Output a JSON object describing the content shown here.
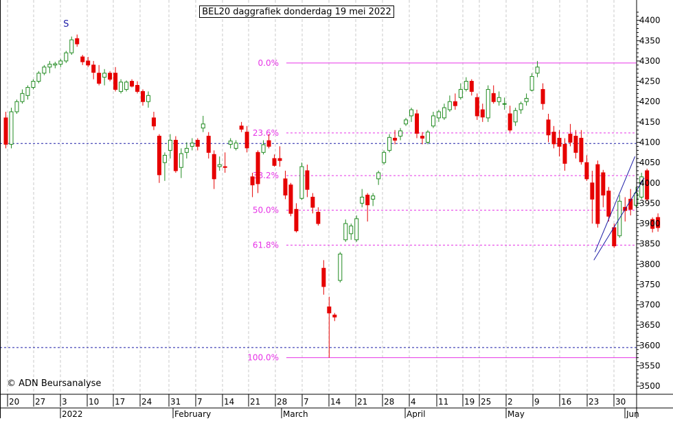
{
  "chart_data": {
    "type": "candlestick",
    "title": "BEL20 daggrafiek donderdag 19 mei 2022",
    "copyright": "© ADN Beursanalyse",
    "y_ticks": [
      4400,
      4350,
      4300,
      4250,
      4200,
      4150,
      4100,
      4050,
      4000,
      3950,
      3900,
      3850,
      3800,
      3750,
      3700,
      3650,
      3600,
      3550,
      3500
    ],
    "ylim": [
      3500,
      4420
    ],
    "day_ticks": [
      "20",
      "27",
      "3",
      "10",
      "17",
      "24",
      "31",
      "7",
      "14",
      "21",
      "28",
      "7",
      "14",
      "21",
      "28",
      "4",
      "11",
      "19",
      "25",
      "2",
      "9",
      "16",
      "23",
      "30"
    ],
    "months": [
      "2022",
      "February",
      "March",
      "April",
      "May",
      "Jun"
    ],
    "fib_levels": [
      {
        "label": "0.0%",
        "value": 4295,
        "style": "solid"
      },
      {
        "label": "23.6%",
        "value": 4123,
        "style": "dashed"
      },
      {
        "label": "38.2%",
        "value": 4018,
        "style": "dashed"
      },
      {
        "label": "50.0%",
        "value": 3933,
        "style": "dashed"
      },
      {
        "label": "61.8%",
        "value": 3847,
        "style": "dashed"
      },
      {
        "label": "100.0%",
        "value": 3570,
        "style": "solid"
      }
    ],
    "blue_levels": [
      4097,
      3595
    ],
    "annotations": [
      {
        "text": "S",
        "color": "#1a1aa6"
      }
    ],
    "candles": [
      [
        4160,
        4175,
        4085,
        4095
      ],
      [
        4095,
        4185,
        4085,
        4175
      ],
      [
        4175,
        4205,
        4170,
        4200
      ],
      [
        4200,
        4230,
        4195,
        4220
      ],
      [
        4215,
        4240,
        4205,
        4235
      ],
      [
        4235,
        4255,
        4230,
        4250
      ],
      [
        4250,
        4275,
        4245,
        4270
      ],
      [
        4270,
        4290,
        4265,
        4285
      ],
      [
        4285,
        4300,
        4270,
        4292
      ],
      [
        4290,
        4298,
        4282,
        4293
      ],
      [
        4292,
        4305,
        4285,
        4300
      ],
      [
        4300,
        4325,
        4295,
        4320
      ],
      [
        4320,
        4360,
        4315,
        4352
      ],
      [
        4355,
        4365,
        4335,
        4342
      ],
      [
        4310,
        4315,
        4290,
        4298
      ],
      [
        4300,
        4310,
        4285,
        4290
      ],
      [
        4290,
        4300,
        4255,
        4272
      ],
      [
        4270,
        4290,
        4240,
        4245
      ],
      [
        4260,
        4280,
        4240,
        4270
      ],
      [
        4270,
        4275,
        4250,
        4255
      ],
      [
        4270,
        4285,
        4225,
        4230
      ],
      [
        4225,
        4255,
        4220,
        4248
      ],
      [
        4230,
        4252,
        4225,
        4248
      ],
      [
        4250,
        4255,
        4235,
        4238
      ],
      [
        4240,
        4250,
        4220,
        4225
      ],
      [
        4225,
        4230,
        4190,
        4200
      ],
      [
        4200,
        4225,
        4185,
        4215
      ],
      [
        4160,
        4175,
        4130,
        4140
      ],
      [
        4115,
        4120,
        4000,
        4020
      ],
      [
        4050,
        4075,
        4005,
        4068
      ],
      [
        4080,
        4120,
        4060,
        4105
      ],
      [
        4105,
        4115,
        4025,
        4030
      ],
      [
        4038,
        4085,
        4012,
        4072
      ],
      [
        4075,
        4100,
        4060,
        4085
      ],
      [
        4090,
        4110,
        4080,
        4098
      ],
      [
        4105,
        4110,
        4080,
        4090
      ],
      [
        4135,
        4165,
        4125,
        4145
      ],
      [
        4115,
        4125,
        4060,
        4075
      ],
      [
        4070,
        4080,
        3985,
        4010
      ],
      [
        4040,
        4065,
        4030,
        4045
      ],
      [
        4040,
        4075,
        4025,
        4038
      ],
      [
        4095,
        4110,
        4085,
        4103
      ],
      [
        4085,
        4105,
        4080,
        4098
      ],
      [
        4140,
        4150,
        4125,
        4132
      ],
      [
        4125,
        4140,
        4075,
        4086
      ],
      [
        4015,
        4025,
        3965,
        3995
      ],
      [
        4075,
        4080,
        3975,
        3998
      ],
      [
        4075,
        4105,
        4070,
        4094
      ],
      [
        4104,
        4120,
        4085,
        4090
      ],
      [
        4060,
        4070,
        4040,
        4043
      ],
      [
        4060,
        4090,
        4040,
        4055
      ],
      [
        4010,
        4030,
        3960,
        3970
      ],
      [
        3995,
        4000,
        3918,
        3925
      ],
      [
        3935,
        3950,
        3878,
        3882
      ],
      [
        3962,
        4050,
        3958,
        4040
      ],
      [
        4030,
        4045,
        3965,
        3984
      ],
      [
        3965,
        3975,
        3925,
        3940
      ],
      [
        3928,
        3940,
        3895,
        3900
      ],
      [
        3790,
        3810,
        3725,
        3745
      ],
      [
        3695,
        3720,
        3570,
        3680
      ],
      [
        3675,
        3680,
        3660,
        3670
      ],
      [
        3760,
        3830,
        3755,
        3825
      ],
      [
        3860,
        3910,
        3855,
        3900
      ],
      [
        3875,
        3900,
        3860,
        3894
      ],
      [
        3860,
        3920,
        3855,
        3912
      ],
      [
        3950,
        3985,
        3940,
        3965
      ],
      [
        3970,
        3975,
        3905,
        3946
      ],
      [
        3960,
        3975,
        3943,
        3968
      ],
      [
        4010,
        4030,
        3995,
        4025
      ],
      [
        4050,
        4080,
        4045,
        4075
      ],
      [
        4080,
        4120,
        4075,
        4112
      ],
      [
        4110,
        4130,
        4095,
        4105
      ],
      [
        4115,
        4135,
        4105,
        4128
      ],
      [
        4145,
        4160,
        4140,
        4155
      ],
      [
        4165,
        4185,
        4150,
        4180
      ],
      [
        4170,
        4180,
        4110,
        4122
      ],
      [
        4115,
        4125,
        4095,
        4110
      ],
      [
        4100,
        4130,
        4095,
        4125
      ],
      [
        4140,
        4175,
        4135,
        4165
      ],
      [
        4160,
        4180,
        4150,
        4175
      ],
      [
        4160,
        4195,
        4155,
        4185
      ],
      [
        4180,
        4215,
        4175,
        4200
      ],
      [
        4200,
        4220,
        4180,
        4190
      ],
      [
        4210,
        4245,
        4205,
        4230
      ],
      [
        4230,
        4260,
        4225,
        4250
      ],
      [
        4250,
        4255,
        4215,
        4225
      ],
      [
        4210,
        4220,
        4155,
        4165
      ],
      [
        4180,
        4195,
        4150,
        4162
      ],
      [
        4160,
        4240,
        4150,
        4230
      ],
      [
        4220,
        4240,
        4195,
        4200
      ],
      [
        4200,
        4225,
        4190,
        4210
      ],
      [
        4195,
        4210,
        4180,
        4195
      ],
      [
        4170,
        4190,
        4125,
        4130
      ],
      [
        4150,
        4185,
        4140,
        4178
      ],
      [
        4180,
        4200,
        4170,
        4195
      ],
      [
        4200,
        4220,
        4190,
        4208
      ],
      [
        4228,
        4270,
        4225,
        4262
      ],
      [
        4270,
        4300,
        4260,
        4285
      ],
      [
        4230,
        4245,
        4180,
        4195
      ],
      [
        4155,
        4170,
        4100,
        4118
      ],
      [
        4125,
        4140,
        4085,
        4096
      ],
      [
        4110,
        4130,
        4065,
        4090
      ],
      [
        4095,
        4110,
        4030,
        4048
      ],
      [
        4120,
        4145,
        4090,
        4100
      ],
      [
        4115,
        4130,
        4060,
        4075
      ],
      [
        4110,
        4130,
        4045,
        4052
      ],
      [
        4050,
        4068,
        4005,
        4010
      ],
      [
        4000,
        4030,
        3900,
        3960
      ],
      [
        4045,
        4055,
        3890,
        3900
      ],
      [
        4025,
        4032,
        3940,
        3970
      ],
      [
        3980,
        3990,
        3905,
        3918
      ],
      [
        3890,
        3900,
        3840,
        3845
      ],
      [
        3870,
        3970,
        3865,
        3955
      ],
      [
        3940,
        3965,
        3905,
        3932
      ],
      [
        3960,
        3985,
        3920,
        3935
      ],
      [
        3945,
        3990,
        3940,
        3975
      ],
      [
        3965,
        4025,
        3960,
        4015
      ],
      [
        4030,
        4035,
        3955,
        3960
      ],
      [
        3910,
        3915,
        3878,
        3888
      ],
      [
        3915,
        3925,
        3880,
        3890
      ]
    ],
    "wedge_lines": [
      {
        "from": [
          107.5,
          3830
        ],
        "to": [
          114.8,
          4065
        ]
      },
      {
        "from": [
          107.3,
          3810
        ],
        "to": [
          116.5,
          4012
        ]
      }
    ]
  }
}
